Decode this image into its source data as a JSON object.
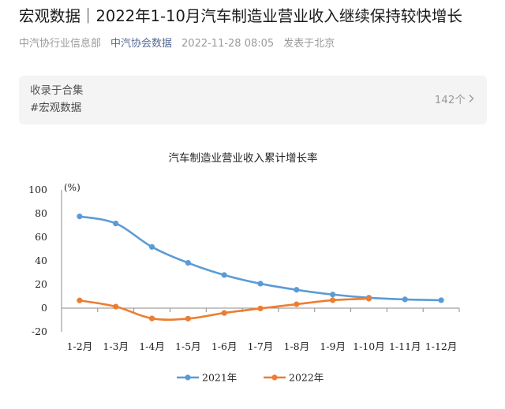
{
  "article": {
    "title": "宏观数据｜2022年1-10月汽车制造业营业收入继续保持较快增长",
    "source": "中汽协行业信息部",
    "account": "中汽协会数据",
    "datetime": "2022-11-28 08:05",
    "location": "发表于北京"
  },
  "collection": {
    "label": "收录于合集",
    "tag": "#宏观数据",
    "count": "142个",
    "chevron_icon": "chevron-right-icon"
  },
  "chart_data": {
    "type": "line",
    "title": "汽车制造业营业收入累计增长率",
    "ylabel": "(%)",
    "xlabel": "",
    "ylim": [
      -20,
      100
    ],
    "yticks": [
      "100",
      "80",
      "60",
      "40",
      "20",
      "0",
      "-20"
    ],
    "categories": [
      "1-2月",
      "1-3月",
      "1-4月",
      "1-5月",
      "1-6月",
      "1-7月",
      "1-8月",
      "1-9月",
      "1-10月",
      "1-11月",
      "1-12月"
    ],
    "legend_position": "bottom",
    "grid": false,
    "series": [
      {
        "name": "2021年",
        "color": "#5b9bd5",
        "values": [
          77.6,
          71.6,
          51.8,
          38.3,
          28.0,
          20.7,
          15.5,
          11.5,
          8.8,
          7.4,
          6.7
        ]
      },
      {
        "name": "2022年",
        "color": "#ed7d31",
        "values": [
          6.5,
          1.3,
          -8.7,
          -8.9,
          -4.1,
          -0.3,
          3.3,
          6.7,
          8.0,
          null,
          null
        ]
      }
    ]
  }
}
